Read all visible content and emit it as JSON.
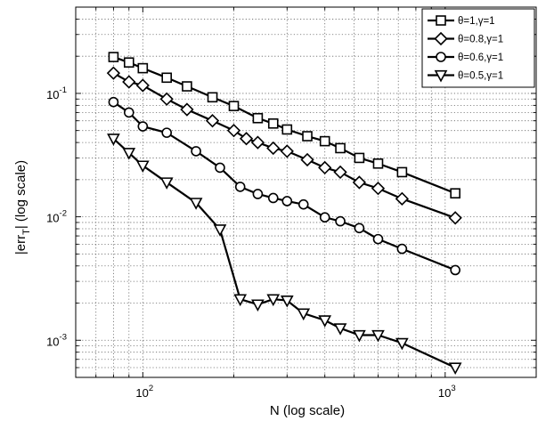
{
  "chart_data": {
    "type": "line",
    "title": "",
    "xlabel": "N (log scale)",
    "ylabel_main": "|err",
    "ylabel_sub": "T",
    "ylabel_end": "| (log scale)",
    "x_scale": "log",
    "y_scale": "log",
    "xlim": [
      60,
      2000
    ],
    "ylim": [
      0.0005,
      0.5
    ],
    "grid": true,
    "legend_position": "top-right",
    "x_ticks": [
      {
        "value": 100,
        "base": "10",
        "exp": "2"
      },
      {
        "value": 1000,
        "base": "10",
        "exp": "3"
      }
    ],
    "y_ticks": [
      {
        "value": 0.001,
        "base": "10",
        "exp": "-3"
      },
      {
        "value": 0.01,
        "base": "10",
        "exp": "-2"
      },
      {
        "value": 0.1,
        "base": "10",
        "exp": "-1"
      }
    ],
    "series": [
      {
        "name": "θ=1,γ=1",
        "marker": "square",
        "x": [
          80,
          90,
          100,
          120,
          140,
          170,
          200,
          240,
          270,
          300,
          350,
          400,
          450,
          520,
          600,
          720,
          1080
        ],
        "y": [
          0.197,
          0.178,
          0.16,
          0.134,
          0.114,
          0.093,
          0.079,
          0.063,
          0.057,
          0.051,
          0.045,
          0.041,
          0.036,
          0.03,
          0.027,
          0.023,
          0.0155
        ]
      },
      {
        "name": "θ=0.8,γ=1",
        "marker": "diamond",
        "x": [
          80,
          90,
          100,
          120,
          140,
          170,
          200,
          220,
          240,
          270,
          300,
          350,
          400,
          450,
          520,
          600,
          720,
          1080
        ],
        "y": [
          0.146,
          0.124,
          0.116,
          0.09,
          0.074,
          0.06,
          0.05,
          0.043,
          0.04,
          0.036,
          0.034,
          0.029,
          0.025,
          0.023,
          0.019,
          0.017,
          0.014,
          0.0098
        ]
      },
      {
        "name": "θ=0.6,γ=1",
        "marker": "circle",
        "x": [
          80,
          90,
          100,
          120,
          150,
          180,
          210,
          240,
          270,
          300,
          340,
          400,
          450,
          520,
          600,
          720,
          1080
        ],
        "y": [
          0.085,
          0.07,
          0.054,
          0.048,
          0.034,
          0.025,
          0.0175,
          0.0153,
          0.0142,
          0.0134,
          0.0126,
          0.0099,
          0.0092,
          0.0081,
          0.0066,
          0.0055,
          0.0037
        ]
      },
      {
        "name": "θ=0.5,γ=1",
        "marker": "triangle-down",
        "x": [
          80,
          90,
          100,
          120,
          150,
          180,
          210,
          240,
          270,
          300,
          340,
          400,
          450,
          520,
          600,
          720,
          1080
        ],
        "y": [
          0.043,
          0.033,
          0.026,
          0.019,
          0.013,
          0.0079,
          0.00215,
          0.00195,
          0.00215,
          0.0021,
          0.00165,
          0.00145,
          0.00125,
          0.0011,
          0.0011,
          0.00095,
          0.0006
        ]
      }
    ]
  }
}
